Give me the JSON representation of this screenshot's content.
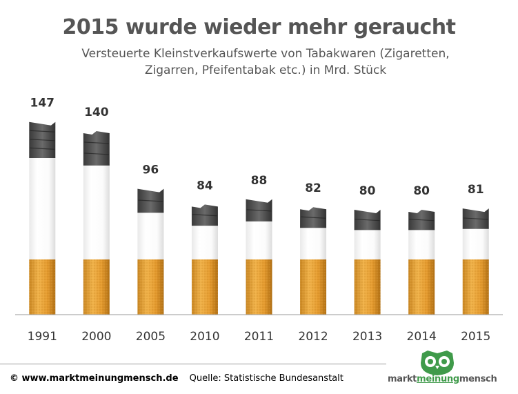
{
  "chart_data": {
    "type": "bar",
    "title": "2015 wurde wieder mehr geraucht",
    "subtitle_line1": "Versteuerte Kleinstverkaufswerte von Tabakwaren (Zigaretten,",
    "subtitle_line2": "Zigarren, Pfeifentabak etc.) in Mrd. Stück",
    "categories": [
      "1991",
      "2000",
      "2005",
      "2010",
      "2011",
      "2012",
      "2013",
      "2014",
      "2015"
    ],
    "values": [
      147,
      140,
      96,
      84,
      88,
      82,
      80,
      80,
      81
    ],
    "xlabel": "",
    "ylabel": "",
    "bar_style": "cigarette",
    "colors": {
      "filter": "#e8a43a",
      "filter_dark": "#b97516",
      "paper": "#ffffff",
      "ash": "#555555",
      "baseline": "#9a9a9a",
      "label": "#333333"
    }
  },
  "footer": {
    "copyright": "© www.marktmeinungmensch.de",
    "source": "Quelle: Statistische Bundesanstalt"
  },
  "brand": {
    "part1": "markt",
    "part2": "meinung",
    "part3": "mensch",
    "logo_color": "#3f9a4a",
    "logo_icon": "owl-icon"
  }
}
